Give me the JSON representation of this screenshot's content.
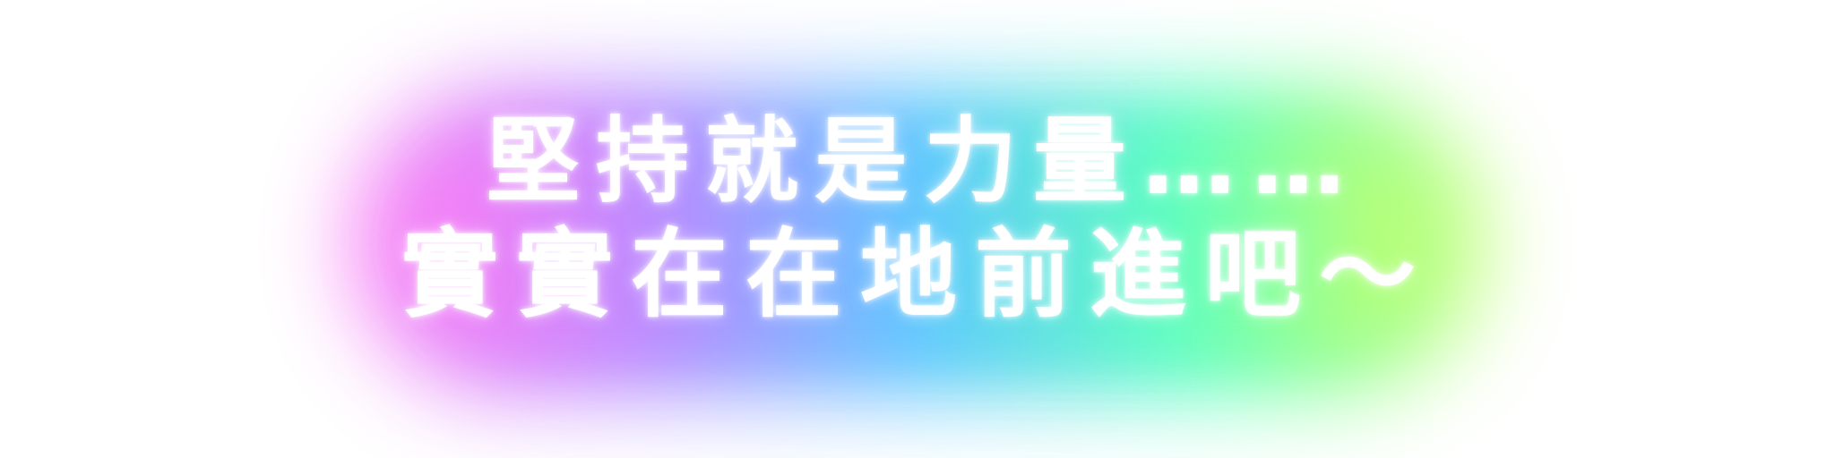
{
  "caption": {
    "line1": "堅持就是力量……",
    "line2": "實實在在地前進吧～"
  },
  "glow_colors": [
    "#ff7df5",
    "#b98cff",
    "#5fc8ff",
    "#5dffc0",
    "#c8ff6a"
  ]
}
